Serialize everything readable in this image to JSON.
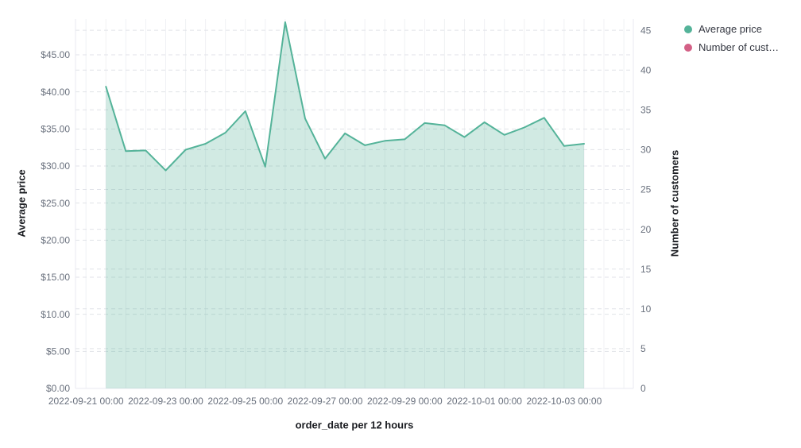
{
  "page": {
    "background": "#ffffff"
  },
  "legend": {
    "items": [
      {
        "label": "Average price",
        "color": "#54b399"
      },
      {
        "label": "Number of cust…",
        "color": "#d36086"
      }
    ]
  },
  "axes": {
    "left": {
      "title": "Average price",
      "tick_labels": [
        "$0.00",
        "$5.00",
        "$10.00",
        "$15.00",
        "$20.00",
        "$25.00",
        "$30.00",
        "$35.00",
        "$40.00",
        "$45.00"
      ]
    },
    "right": {
      "title": "Number of customers",
      "tick_labels": [
        "0",
        "5",
        "10",
        "15",
        "20",
        "25",
        "30",
        "35",
        "40",
        "45"
      ]
    },
    "x": {
      "title": "order_date per 12 hours",
      "tick_labels": [
        "2022-09-21 00:00",
        "2022-09-23 00:00",
        "2022-09-25 00:00",
        "2022-09-27 00:00",
        "2022-09-29 00:00",
        "2022-10-01 00:00",
        "2022-10-03 00:00"
      ]
    }
  },
  "chart_data": {
    "type": "area",
    "title": "",
    "xlabel": "order_date per 12 hours",
    "ylabel": "Average price",
    "y2label": "Number of customers",
    "ylim": [
      0,
      45
    ],
    "y2lim": [
      0,
      45
    ],
    "grid": true,
    "legend_position": "top-right",
    "x": [
      "2022-09-21 12:00",
      "2022-09-22 00:00",
      "2022-09-22 12:00",
      "2022-09-23 00:00",
      "2022-09-23 12:00",
      "2022-09-24 00:00",
      "2022-09-24 12:00",
      "2022-09-25 00:00",
      "2022-09-25 12:00",
      "2022-09-26 00:00",
      "2022-09-26 12:00",
      "2022-09-27 00:00",
      "2022-09-27 12:00",
      "2022-09-28 00:00",
      "2022-09-28 12:00",
      "2022-09-29 00:00",
      "2022-09-29 12:00",
      "2022-09-30 00:00",
      "2022-09-30 12:00",
      "2022-10-01 00:00",
      "2022-10-01 12:00",
      "2022-10-02 00:00",
      "2022-10-02 12:00",
      "2022-10-03 00:00",
      "2022-10-03 12:00"
    ],
    "series": [
      {
        "name": "Average price",
        "axis": "left",
        "color": "#54b399",
        "fill_opacity": 0.27,
        "values": [
          40.7,
          32.0,
          32.1,
          29.4,
          32.2,
          33.0,
          34.5,
          37.4,
          29.9,
          49.4,
          36.4,
          31.0,
          34.4,
          32.8,
          33.4,
          33.6,
          35.8,
          35.5,
          33.9,
          35.9,
          34.2,
          35.2,
          36.5,
          32.7,
          33.0
        ]
      },
      {
        "name": "Number of customers",
        "axis": "right",
        "color": "#d36086",
        "values": []
      }
    ]
  },
  "colors": {
    "grid_vertical": "#f0f1f4",
    "grid_dashed": "#e0e2e8",
    "axis_line": "#e8eaf0",
    "tick_text": "#69707d",
    "title_text": "#1a1c21"
  }
}
